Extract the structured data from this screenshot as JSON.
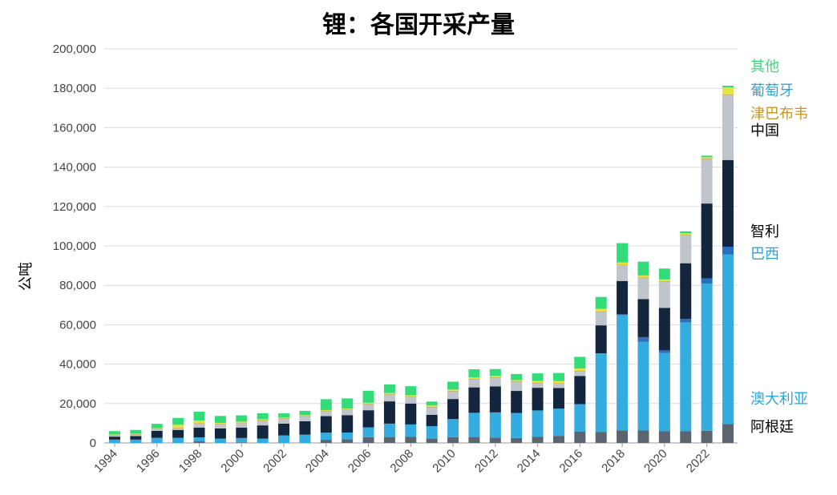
{
  "chart_data": {
    "type": "bar",
    "stacked": true,
    "title": "锂：各国开采产量",
    "ylabel": "公吨",
    "xlabel": "",
    "ylim": [
      0,
      200000
    ],
    "y_ticks": [
      "0",
      "20,000",
      "40,000",
      "60,000",
      "80,000",
      "100,000",
      "120,000",
      "140,000",
      "160,000",
      "180,000",
      "200,000"
    ],
    "x_tick_labels": [
      "1994",
      "1996",
      "1998",
      "2000",
      "2002",
      "2004",
      "2006",
      "2008",
      "2010",
      "2012",
      "2014",
      "2016",
      "2018",
      "2020",
      "2022"
    ],
    "grid": true,
    "legend_position": "right",
    "categories": [
      "1994",
      "1995",
      "1996",
      "1997",
      "1998",
      "1999",
      "2000",
      "2001",
      "2002",
      "2003",
      "2004",
      "2005",
      "2006",
      "2007",
      "2008",
      "2009",
      "2010",
      "2011",
      "2012",
      "2013",
      "2014",
      "2015",
      "2016",
      "2017",
      "2018",
      "2019",
      "2020",
      "2021",
      "2022",
      "2023"
    ],
    "series": [
      {
        "name": "阿根廷",
        "color": "#5a6570",
        "values": [
          0,
          0,
          0,
          0,
          800,
          0,
          300,
          0,
          0,
          0,
          1600,
          1800,
          2900,
          3000,
          3200,
          2200,
          2900,
          3000,
          2700,
          2500,
          3200,
          3600,
          5700,
          5500,
          6400,
          6300,
          5900,
          5900,
          6200,
          9600
        ]
      },
      {
        "name": "澳大利亚",
        "color": "#35ace0",
        "values": [
          1700,
          1700,
          2600,
          2600,
          2000,
          2200,
          2200,
          2200,
          3800,
          4200,
          3600,
          3500,
          5000,
          6800,
          6200,
          6300,
          9200,
          12300,
          12800,
          12700,
          13300,
          13800,
          14000,
          40000,
          58800,
          45000,
          39700,
          55300,
          74700,
          86000
        ]
      },
      {
        "name": "巴西",
        "color": "#2a6fbe",
        "values": [
          0,
          0,
          0,
          0,
          0,
          0,
          0,
          0,
          0,
          0,
          0,
          0,
          0,
          0,
          0,
          0,
          0,
          0,
          0,
          0,
          0,
          0,
          0,
          0,
          0,
          2400,
          1400,
          1700,
          2600,
          4000
        ]
      },
      {
        "name": "智利",
        "color": "#14253e",
        "values": [
          1500,
          1800,
          3500,
          4000,
          5000,
          5200,
          5300,
          6700,
          6000,
          6800,
          8400,
          8800,
          8700,
          11300,
          10600,
          5800,
          10200,
          12900,
          13200,
          11200,
          11500,
          10500,
          14300,
          14200,
          17000,
          19300,
          21500,
          28300,
          38000,
          44000
        ]
      },
      {
        "name": "中国",
        "color": "#bfc5ca",
        "values": [
          600,
          700,
          800,
          800,
          2000,
          2000,
          2200,
          2400,
          2500,
          2500,
          2500,
          2600,
          3000,
          3400,
          3300,
          3800,
          3900,
          4100,
          4400,
          4700,
          2300,
          2200,
          2300,
          6800,
          8000,
          10800,
          13300,
          14000,
          22600,
          33000
        ]
      },
      {
        "name": "津巴布韦",
        "color": "#c8a634",
        "values": [
          300,
          300,
          300,
          300,
          300,
          300,
          300,
          300,
          300,
          300,
          300,
          300,
          300,
          300,
          300,
          300,
          300,
          300,
          300,
          300,
          300,
          300,
          300,
          300,
          300,
          300,
          300,
          300,
          300,
          300
        ]
      },
      {
        "name": "葡萄牙",
        "color": "#e4e340",
        "values": [
          200,
          200,
          300,
          1500,
          1300,
          500,
          500,
          500,
          300,
          300,
          300,
          400,
          500,
          500,
          600,
          600,
          600,
          700,
          600,
          500,
          900,
          1000,
          1200,
          1300,
          1100,
          900,
          900,
          900,
          600,
          3600
        ]
      },
      {
        "name": "其他",
        "color": "#32dc78",
        "values": [
          1700,
          1900,
          2200,
          3500,
          4500,
          3500,
          3200,
          3000,
          2100,
          2200,
          5500,
          5200,
          6100,
          4400,
          4600,
          2000,
          4000,
          4100,
          3500,
          3100,
          3800,
          4100,
          5900,
          6000,
          9800,
          7000,
          5500,
          1000,
          800,
          800
        ]
      }
    ],
    "legend": [
      {
        "label": "其他",
        "color": "#32dc78"
      },
      {
        "label": "葡萄牙",
        "color": "#2aa6dc"
      },
      {
        "label": "津巴布韦",
        "color": "#c8961e"
      },
      {
        "label": "中国",
        "color": "#000000"
      },
      {
        "label": "智利",
        "color": "#000000"
      },
      {
        "label": "巴西",
        "color": "#2aa6dc"
      },
      {
        "label": "澳大利亚",
        "color": "#2aa6dc"
      },
      {
        "label": "阿根廷",
        "color": "#000000"
      }
    ]
  }
}
